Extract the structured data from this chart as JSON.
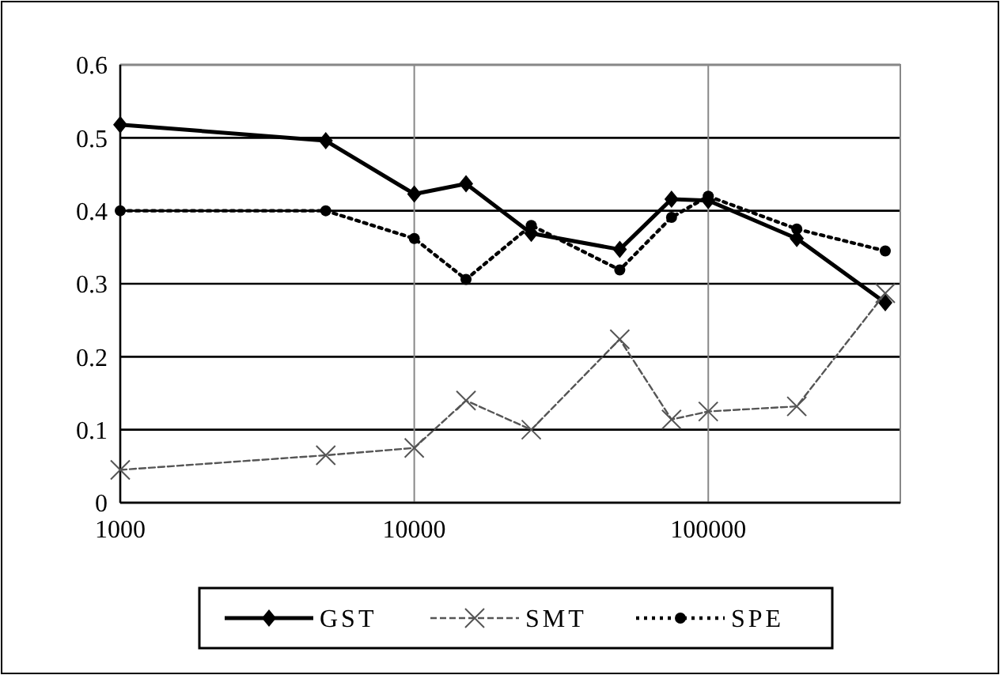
{
  "chart_data": {
    "type": "line",
    "log": "x",
    "x": [
      1000,
      5000,
      10000,
      15000,
      25000,
      50000,
      75000,
      100000,
      200000,
      400000
    ],
    "xlim": [
      1000,
      450000
    ],
    "xticks": [
      1000,
      10000,
      100000
    ],
    "ylim": [
      0,
      0.6
    ],
    "yticks": [
      0,
      0.1,
      0.2,
      0.3,
      0.4,
      0.5,
      0.6
    ],
    "grid": true,
    "legend": "bottom",
    "series": [
      {
        "name": "GST",
        "color": "#000000",
        "marker": "diamond",
        "line_style": "solid",
        "values": [
          0.518,
          0.496,
          0.423,
          0.437,
          0.369,
          0.347,
          0.416,
          0.414,
          0.362,
          0.274
        ]
      },
      {
        "name": "SMT",
        "color": "#555555",
        "marker": "cross",
        "line_style": "dashed",
        "values": [
          0.045,
          0.065,
          0.075,
          0.14,
          0.1,
          0.224,
          0.114,
          0.125,
          0.132,
          0.287
        ]
      },
      {
        "name": "SPE",
        "color": "#000000",
        "marker": "circle",
        "line_style": "dotted",
        "values": [
          0.4,
          0.4,
          0.362,
          0.306,
          0.38,
          0.319,
          0.391,
          0.42,
          0.375,
          0.345
        ]
      }
    ]
  }
}
